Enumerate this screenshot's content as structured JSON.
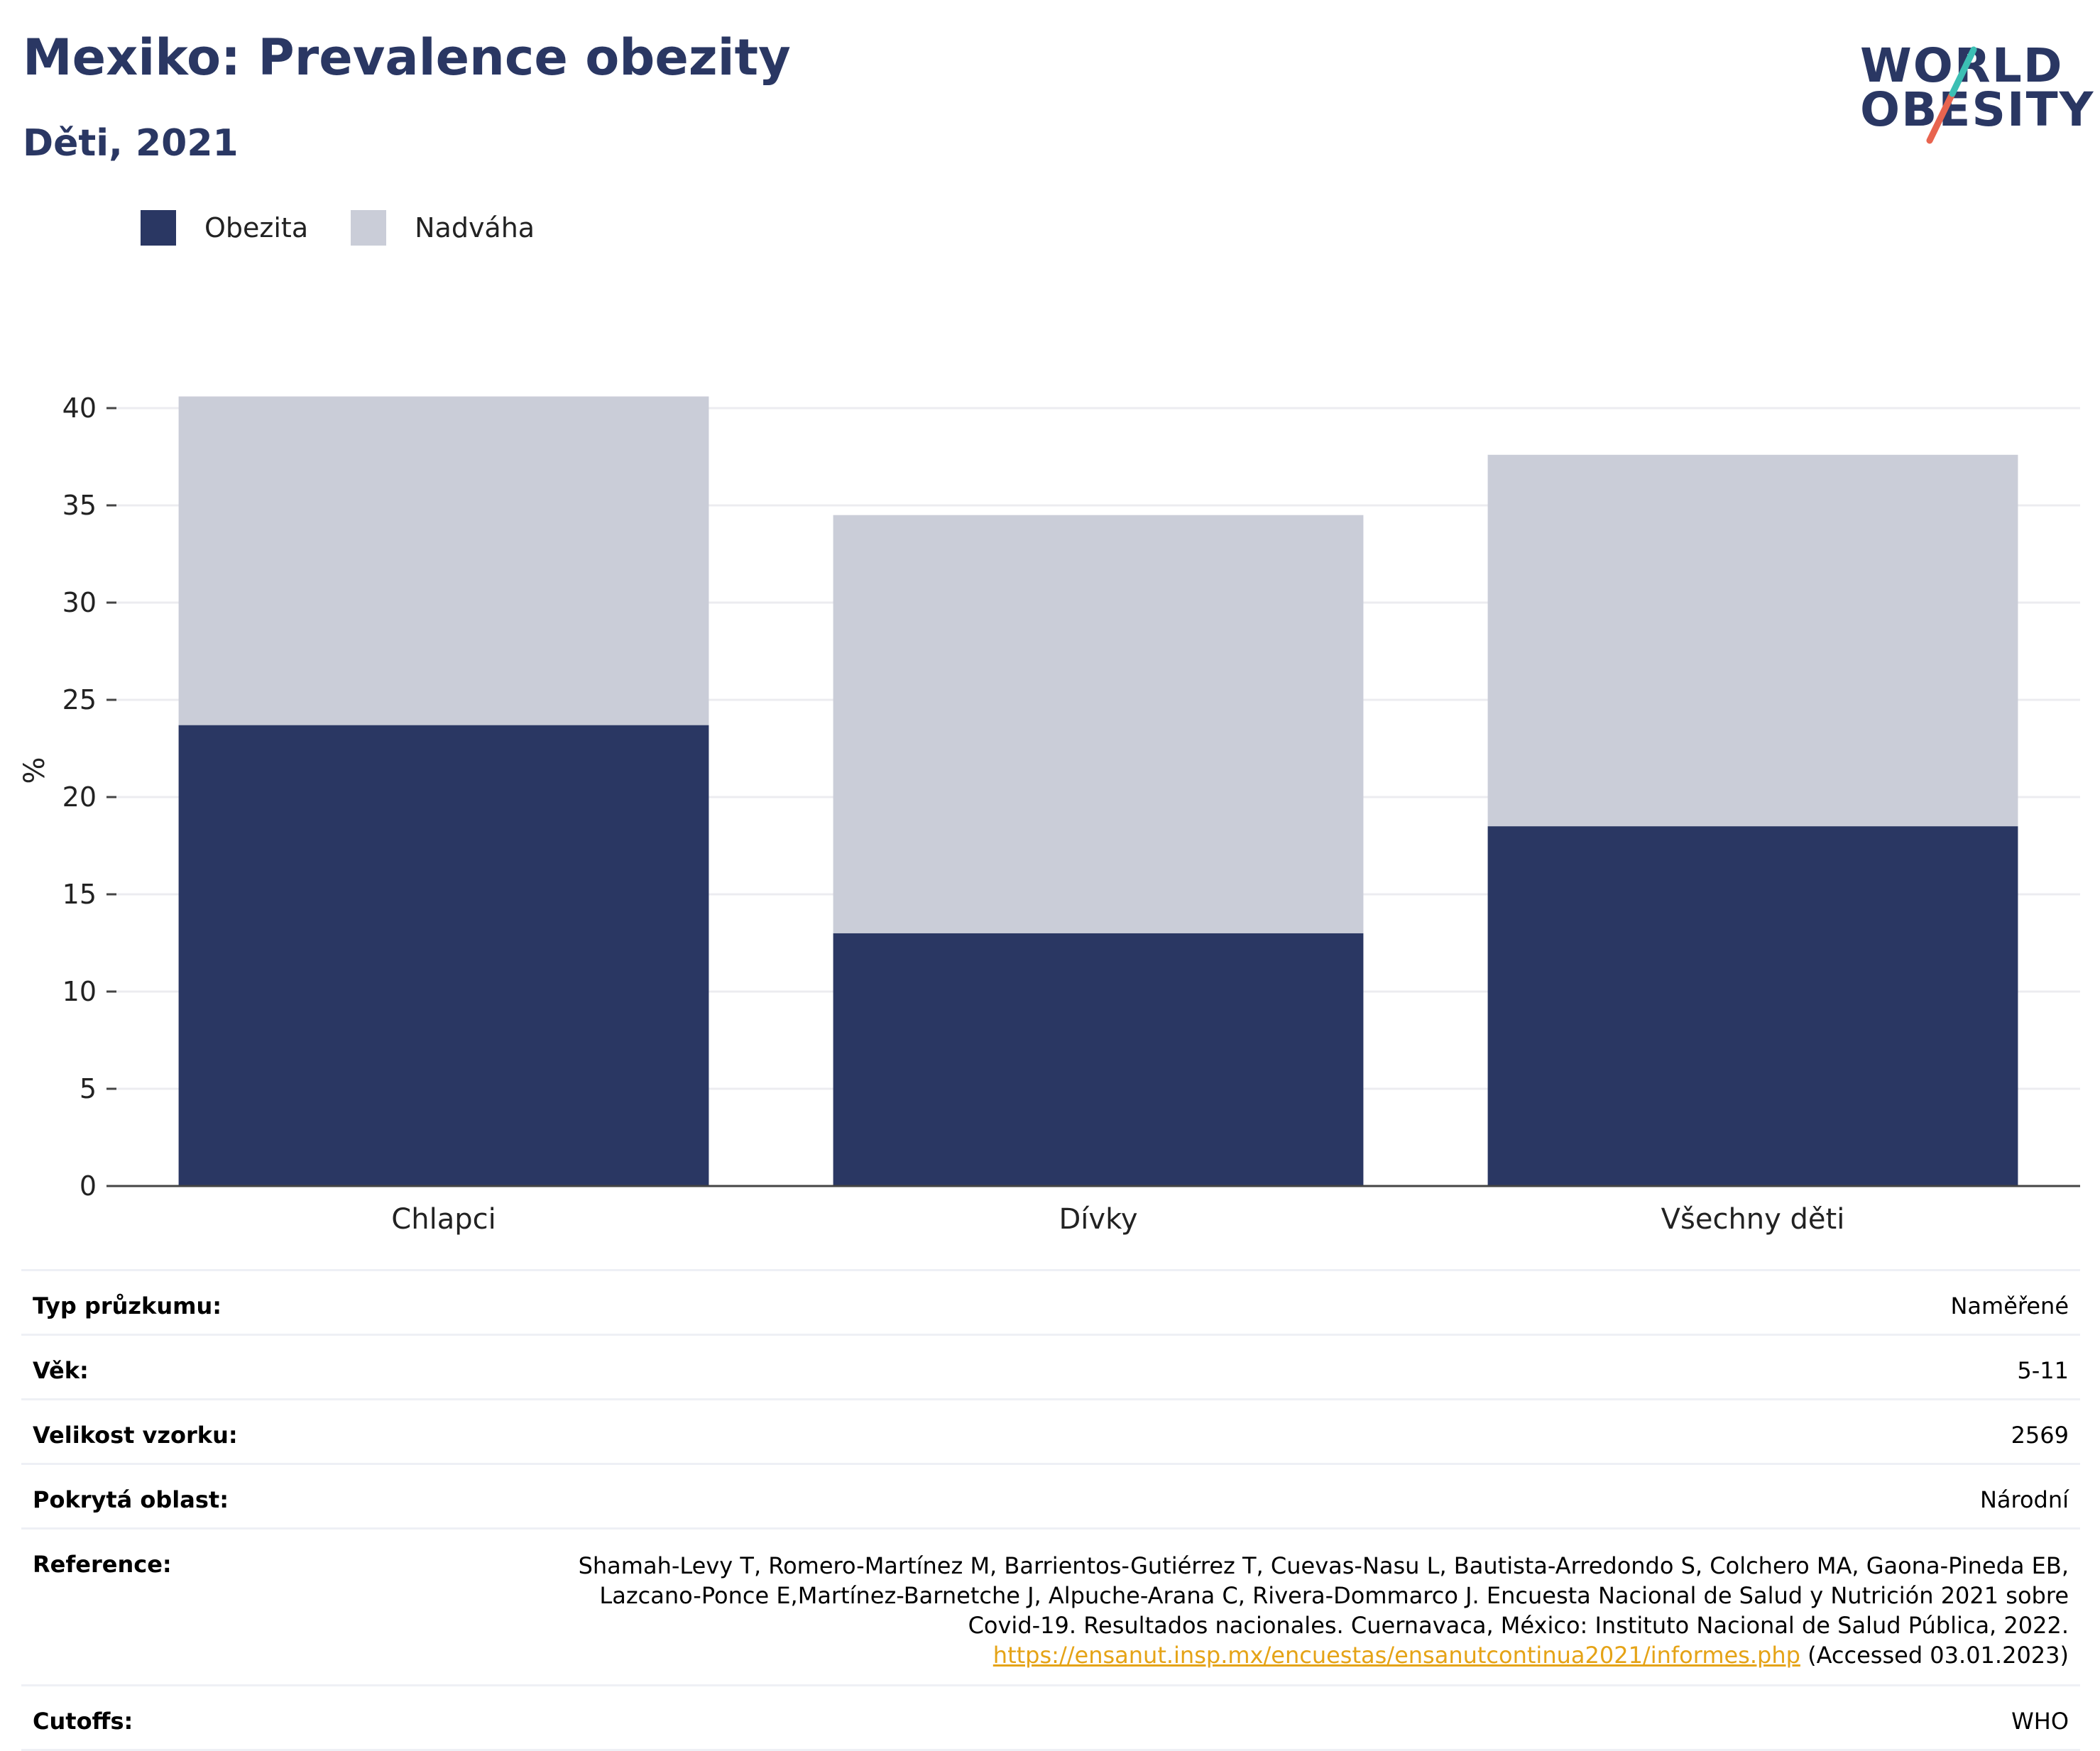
{
  "header": {
    "title": "Mexiko: Prevalence obezity",
    "subtitle": "Děti, 2021"
  },
  "logo": {
    "line1": "WORLD",
    "line2": "OBESITY",
    "colors": [
      "#2a3763",
      "#3cbfb4",
      "#e8644f"
    ]
  },
  "legend": [
    {
      "label": "Obezita",
      "color": "#2a3763"
    },
    {
      "label": "Nadváha",
      "color": "#cacdd8"
    }
  ],
  "chart_data": {
    "type": "bar",
    "stacked": true,
    "categories": [
      "Chlapci",
      "Dívky",
      "Všechny děti"
    ],
    "series": [
      {
        "name": "Obezita",
        "color": "#2a3763",
        "values": [
          23.7,
          13.0,
          18.5
        ]
      },
      {
        "name": "Nadváha",
        "color": "#cacdd8",
        "values": [
          16.9,
          21.5,
          19.1
        ]
      }
    ],
    "ylabel": "%",
    "ylim": [
      0,
      41
    ],
    "yticks": [
      0,
      5,
      10,
      15,
      20,
      25,
      30,
      35,
      40
    ],
    "grid": true,
    "legend_position": "top-left"
  },
  "info": {
    "survey_type": {
      "label": "Typ průzkumu:",
      "value": "Naměřené"
    },
    "age": {
      "label": "Věk:",
      "value": "5-11"
    },
    "sample_size": {
      "label": "Velikost vzorku:",
      "value": "2569"
    },
    "area": {
      "label": "Pokrytá oblast:",
      "value": "Národní"
    },
    "reference": {
      "label": "Reference:",
      "line1": "Shamah-Levy T, Romero-Martínez M, Barrientos-Gutiérrez T, Cuevas-Nasu L, Bautista-Arredondo S, Colchero MA, Gaona-Pineda EB,",
      "line2": "Lazcano-Ponce E,Martínez-Barnetche J, Alpuche-Arana C, Rivera-Dommarco J. Encuesta Nacional de Salud y Nutrición 2021 sobre",
      "line3": "Covid-19. Resultados nacionales. Cuernavaca, México: Instituto Nacional de Salud Pública, 2022.",
      "link": "https://ensanut.insp.mx/encuestas/ensanutcontinua2021/informes.php",
      "accessed": " (Accessed 03.01.2023)"
    },
    "cutoffs": {
      "label": "Cutoffs:",
      "value": "WHO"
    }
  }
}
